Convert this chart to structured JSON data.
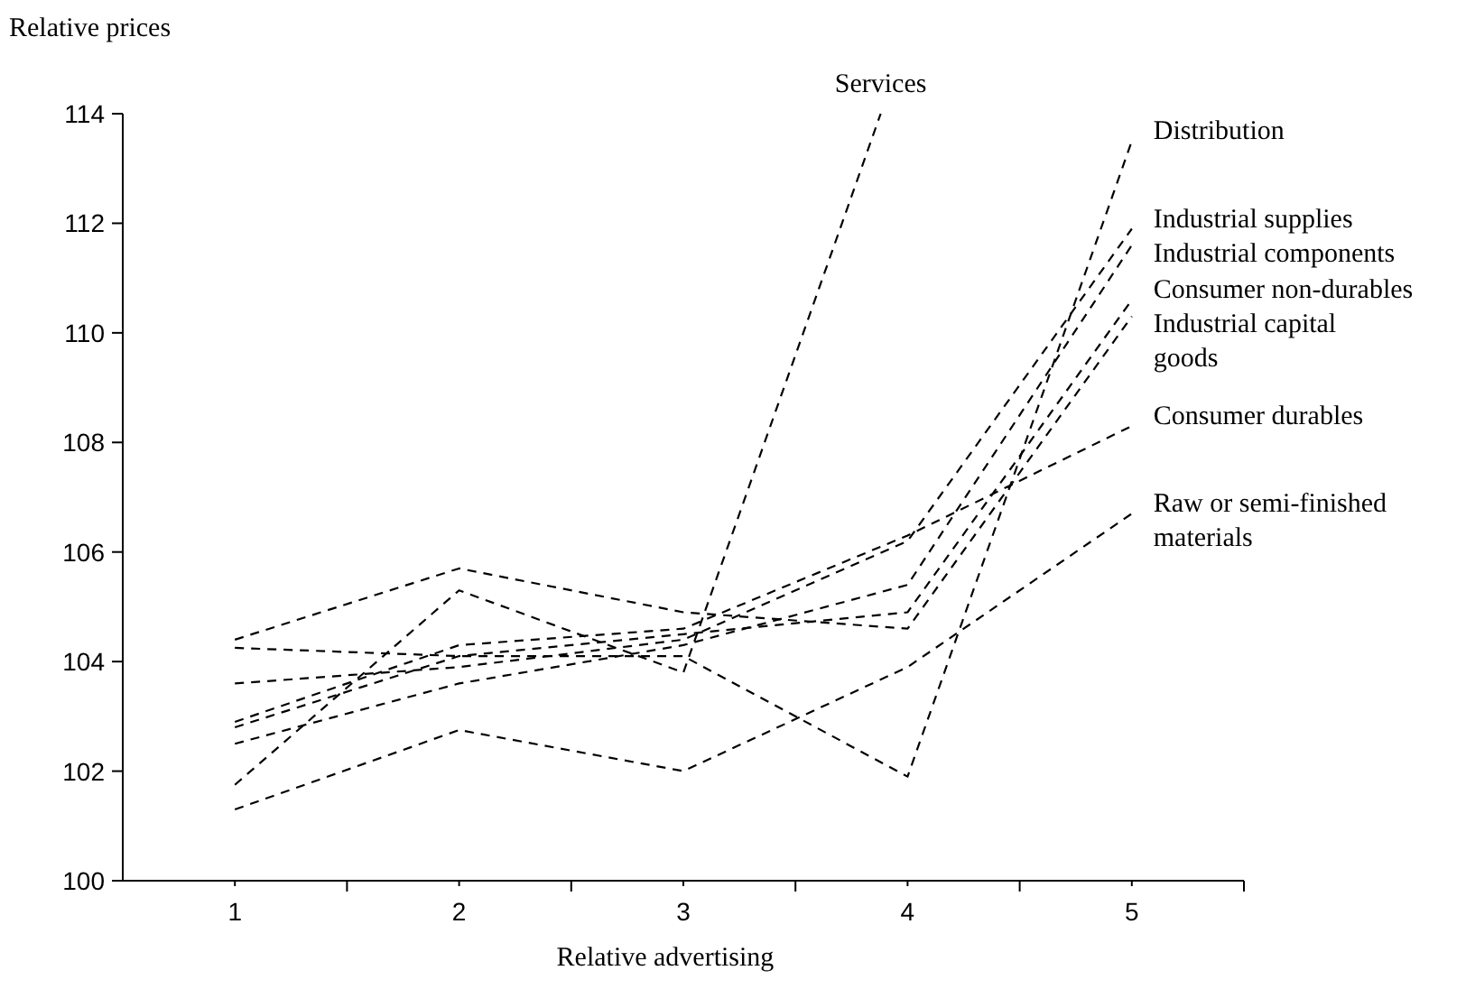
{
  "chart_data": {
    "type": "line",
    "xlabel": "Relative advertising",
    "ylabel": "Relative prices",
    "x": [
      1,
      2,
      3,
      4,
      5
    ],
    "xlim": [
      0.5,
      5.5
    ],
    "xticks": [
      {
        "value": 1,
        "label": "1"
      },
      {
        "value": 1.5,
        "label": null
      },
      {
        "value": 2,
        "label": "2"
      },
      {
        "value": 2.5,
        "label": null
      },
      {
        "value": 3,
        "label": "3"
      },
      {
        "value": 3.5,
        "label": null
      },
      {
        "value": 4,
        "label": "4"
      },
      {
        "value": 4.5,
        "label": null
      },
      {
        "value": 5,
        "label": "5"
      },
      {
        "value": 5.5,
        "label": null
      }
    ],
    "ylim": [
      100,
      114
    ],
    "yticks": [
      100,
      102,
      104,
      106,
      108,
      110,
      112,
      114
    ],
    "line_style": "dashed",
    "marker": "none",
    "series": [
      {
        "name": "Services",
        "color": "#000000",
        "x": [
          1,
          2,
          3,
          3.88
        ],
        "values": [
          101.75,
          105.3,
          103.8,
          114
        ]
      },
      {
        "name": "Distribution",
        "color": "#000000",
        "values": [
          104.25,
          104.1,
          104.1,
          101.9,
          113.5
        ]
      },
      {
        "name": "Industrial supplies",
        "color": "#000000",
        "values": [
          103.6,
          103.9,
          104.4,
          106.2,
          111.9
        ]
      },
      {
        "name": "Industrial components",
        "color": "#000000",
        "values": [
          102.5,
          103.6,
          104.3,
          105.4,
          111.6
        ]
      },
      {
        "name": "Consumer non-durables",
        "color": "#000000",
        "values": [
          102.8,
          104.1,
          104.5,
          104.9,
          110.6
        ]
      },
      {
        "name": "Industrial capital goods",
        "color": "#000000",
        "values": [
          104.4,
          105.7,
          104.9,
          104.6,
          110.3
        ]
      },
      {
        "name": "Consumer durables",
        "color": "#000000",
        "values": [
          102.9,
          104.3,
          104.6,
          106.3,
          108.3
        ]
      },
      {
        "name": "Raw or semi-finished materials",
        "color": "#000000",
        "values": [
          101.3,
          102.75,
          102.0,
          103.9,
          106.7
        ]
      }
    ]
  }
}
